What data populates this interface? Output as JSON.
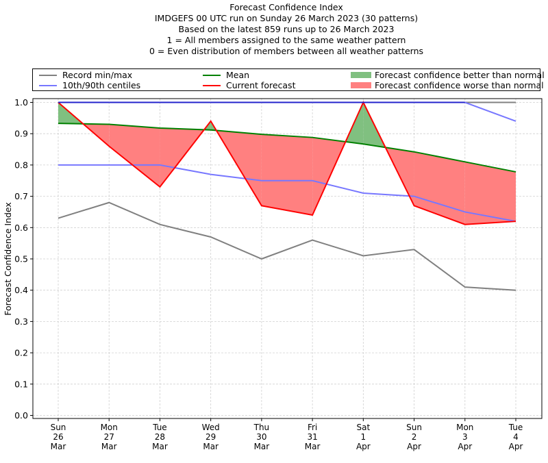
{
  "title_lines": [
    "Forecast Confidence Index",
    "IMDGEFS 00 UTC run on Sunday 26 March 2023 (30 patterns)",
    "Based on the latest 859 runs up to 26 March 2023",
    "1 = All members assigned to the same weather pattern",
    "0 = Even distribution of members between all weather patterns"
  ],
  "legend": {
    "record": "Record min/max",
    "centiles": "10th/90th centiles",
    "mean": "Mean",
    "current": "Current forecast",
    "better": "Forecast confidence better than normal",
    "worse": "Forecast confidence worse than normal"
  },
  "colors": {
    "record": "#808080",
    "centiles": "#7777ff",
    "centiles_top": "#2222cc",
    "mean": "#008000",
    "current": "#ff0000",
    "better": "#80c080",
    "worse": "#ff8080",
    "grid": "#d0d0d0"
  },
  "chart_data": {
    "type": "line",
    "title": "Forecast Confidence Index",
    "xlabel": "",
    "ylabel": "Forecast Confidence Index",
    "ylim": [
      0.0,
      1.0
    ],
    "yticks": [
      "0.0",
      "0.1",
      "0.2",
      "0.3",
      "0.4",
      "0.5",
      "0.6",
      "0.7",
      "0.8",
      "0.9",
      "1.0"
    ],
    "grid": true,
    "legend_position": "top",
    "categories": [
      [
        "Sun",
        "26",
        "Mar"
      ],
      [
        "Mon",
        "27",
        "Mar"
      ],
      [
        "Tue",
        "28",
        "Mar"
      ],
      [
        "Wed",
        "29",
        "Mar"
      ],
      [
        "Thu",
        "30",
        "Mar"
      ],
      [
        "Fri",
        "31",
        "Mar"
      ],
      [
        "Sat",
        "1",
        "Apr"
      ],
      [
        "Sun",
        "2",
        "Apr"
      ],
      [
        "Mon",
        "3",
        "Apr"
      ],
      [
        "Tue",
        "4",
        "Apr"
      ]
    ],
    "series": [
      {
        "name": "Record min",
        "values": [
          0.63,
          0.68,
          0.61,
          0.57,
          0.5,
          0.56,
          0.51,
          0.53,
          0.41,
          0.4
        ]
      },
      {
        "name": "Record max",
        "values": [
          1.0,
          1.0,
          1.0,
          1.0,
          1.0,
          1.0,
          1.0,
          1.0,
          1.0,
          1.0
        ]
      },
      {
        "name": "10th centile",
        "values": [
          0.8,
          0.8,
          0.8,
          0.77,
          0.75,
          0.75,
          0.71,
          0.7,
          0.65,
          0.62
        ]
      },
      {
        "name": "90th centile",
        "values": [
          1.0,
          1.0,
          1.0,
          1.0,
          1.0,
          1.0,
          1.0,
          1.0,
          1.0,
          0.94
        ]
      },
      {
        "name": "Mean",
        "values": [
          0.933,
          0.93,
          0.918,
          0.912,
          0.898,
          0.888,
          0.867,
          0.842,
          0.81,
          0.778
        ]
      },
      {
        "name": "Current forecast",
        "values": [
          1.0,
          0.86,
          0.73,
          0.94,
          0.67,
          0.64,
          1.0,
          0.67,
          0.61,
          0.62
        ]
      }
    ]
  }
}
